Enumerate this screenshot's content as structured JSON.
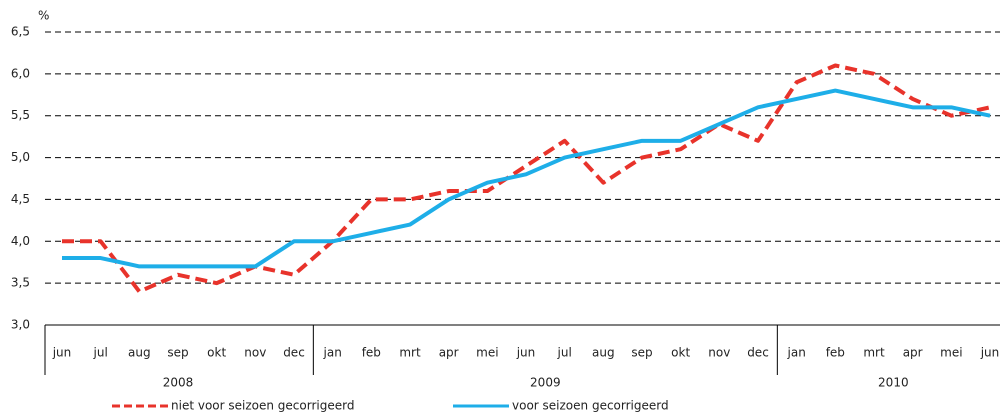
{
  "chart_data": {
    "type": "line",
    "y_unit": "%",
    "categories": [
      "jun",
      "jul",
      "aug",
      "sep",
      "okt",
      "nov",
      "dec",
      "jan",
      "feb",
      "mrt",
      "apr",
      "mei",
      "jun",
      "jul",
      "aug",
      "sep",
      "okt",
      "nov",
      "dec",
      "jan",
      "feb",
      "mrt",
      "apr",
      "mei",
      "jun"
    ],
    "groups": [
      "2008",
      "2009",
      "2010"
    ],
    "series": [
      {
        "name": "niet voor seizoen gecorrigeerd",
        "color": "#e8332b",
        "line_style": "dashed",
        "values": [
          4.0,
          4.0,
          3.4,
          3.6,
          3.5,
          3.7,
          3.6,
          4.0,
          4.5,
          4.5,
          4.6,
          4.6,
          4.9,
          5.2,
          4.7,
          5.0,
          5.1,
          5.4,
          5.2,
          5.9,
          6.1,
          6.0,
          5.7,
          5.5,
          5.6
        ]
      },
      {
        "name": "voor seizoen gecorrigeerd",
        "color": "#1eaee8",
        "line_style": "solid",
        "values": [
          3.8,
          3.8,
          3.7,
          3.7,
          3.7,
          3.7,
          4.0,
          4.0,
          4.1,
          4.2,
          4.5,
          4.7,
          4.8,
          5.0,
          5.1,
          5.2,
          5.2,
          5.4,
          5.6,
          5.7,
          5.8,
          5.7,
          5.6,
          5.6,
          5.5
        ]
      }
    ],
    "ylim": [
      3.0,
      6.5
    ],
    "yticks": [
      {
        "value": 3.0,
        "label": "3,0"
      },
      {
        "value": 3.5,
        "label": "3,5"
      },
      {
        "value": 4.0,
        "label": "4,0"
      },
      {
        "value": 4.5,
        "label": "4,5"
      },
      {
        "value": 5.0,
        "label": "5,0"
      },
      {
        "value": 5.5,
        "label": "5,5"
      },
      {
        "value": 6.0,
        "label": "6,0"
      },
      {
        "value": 6.5,
        "label": "6,5"
      }
    ],
    "grid": true
  }
}
